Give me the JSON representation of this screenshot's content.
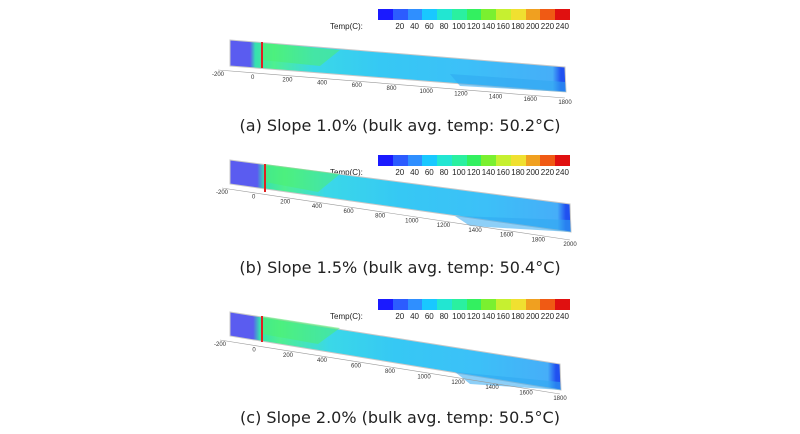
{
  "legend": {
    "title": "Temp(C):",
    "ticks": [
      "20",
      "40",
      "60",
      "80",
      "100",
      "120",
      "140",
      "160",
      "180",
      "200",
      "220",
      "240"
    ],
    "colors": [
      "#1a1aff",
      "#2c5cff",
      "#2f8fff",
      "#19c8ff",
      "#22e6d2",
      "#2af0a0",
      "#33f060",
      "#7af030",
      "#c6f030",
      "#f0e030",
      "#f0a020",
      "#f05a14",
      "#e01010"
    ]
  },
  "panels": [
    {
      "caption": "(a) Slope 1.0% (bulk avg. temp: 50.2°C)",
      "axis_labels": [
        "-200",
        "0",
        "200",
        "400",
        "600",
        "800",
        "1000",
        "1200",
        "1400",
        "1600",
        "1800"
      ]
    },
    {
      "caption": "(b) Slope 1.5% (bulk avg. temp: 50.4°C)",
      "axis_labels": [
        "-200",
        "0",
        "200",
        "400",
        "600",
        "800",
        "1000",
        "1200",
        "1400",
        "1600",
        "1800",
        "2000"
      ]
    },
    {
      "caption": "(c) Slope 2.0% (bulk avg. temp: 50.5°C)",
      "axis_labels": [
        "-200",
        "0",
        "200",
        "400",
        "600",
        "800",
        "1000",
        "1200",
        "1400",
        "1600",
        "1800"
      ]
    }
  ]
}
